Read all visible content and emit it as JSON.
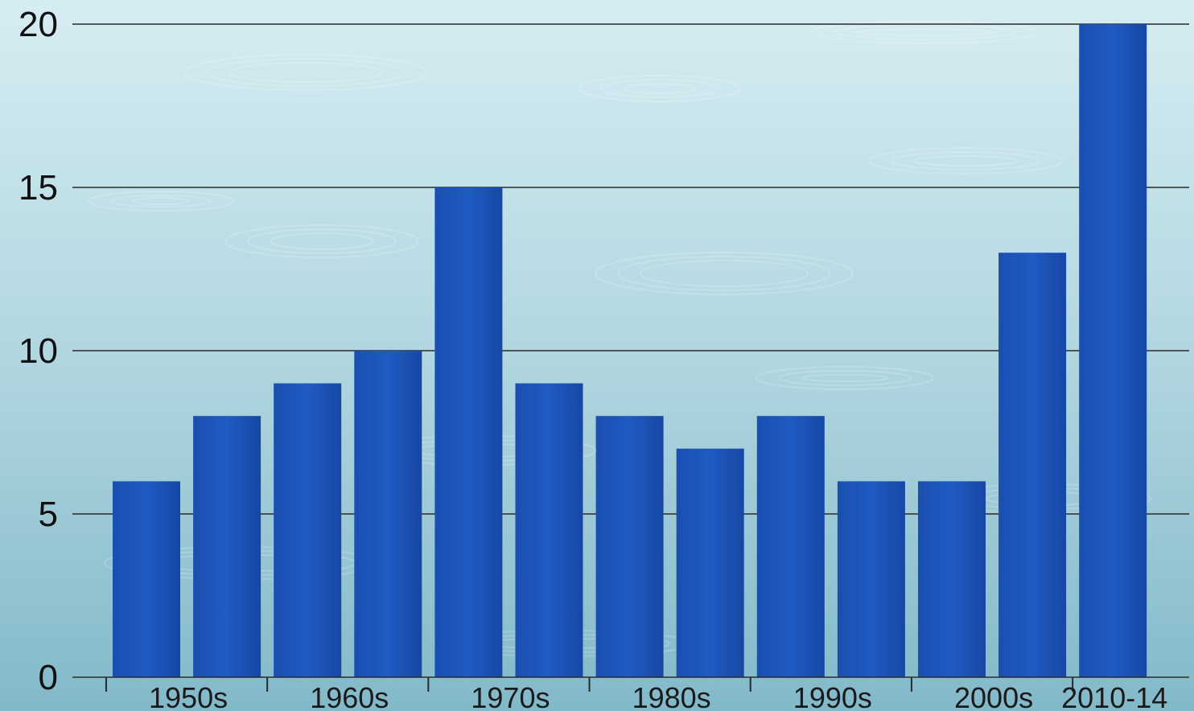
{
  "chart_data": {
    "type": "bar",
    "title": "",
    "xlabel": "",
    "ylabel": "",
    "ylim": [
      0,
      20
    ],
    "yticks": [
      0,
      5,
      10,
      15,
      20
    ],
    "grid": true,
    "colors": {
      "bar": "#1a52b5",
      "bar_dark": "#0f3c94",
      "background_top": "#d3ebf1",
      "background_bottom": "#86bccb",
      "gridline": "#2a2a2a"
    },
    "values": [
      6,
      8,
      9,
      10,
      15,
      9,
      8,
      7,
      8,
      6,
      6,
      13,
      20
    ],
    "category_groups": [
      {
        "label": "1950s",
        "bars": 2
      },
      {
        "label": "1960s",
        "bars": 2
      },
      {
        "label": "1970s",
        "bars": 2
      },
      {
        "label": "1980s",
        "bars": 2
      },
      {
        "label": "1990s",
        "bars": 2
      },
      {
        "label": "2000s",
        "bars": 2
      },
      {
        "label": "2010-14",
        "bars": 1
      }
    ]
  }
}
